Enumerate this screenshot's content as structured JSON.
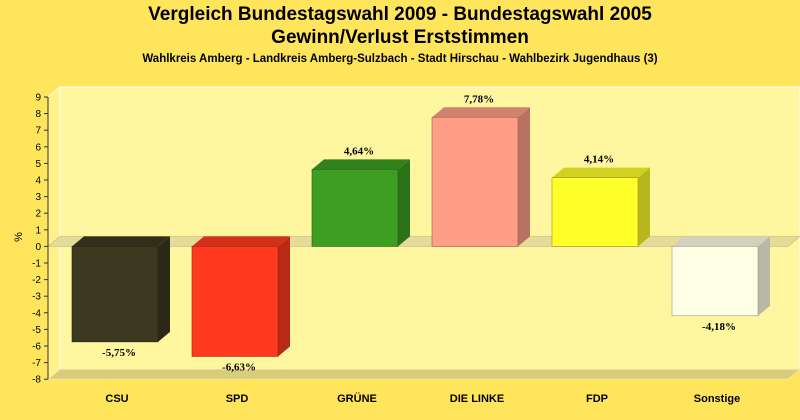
{
  "chart_data": {
    "type": "bar",
    "title": "Vergleich Bundestagswahl 2009 - Bundestagswahl 2005",
    "subtitle": "Gewinn/Verlust Erststimmen",
    "subtitle2": "Wahlkreis Amberg - Landkreis Amberg-Sulzbach - Stadt Hirschau - Wahlbezirk Jugendhaus (3)",
    "ylabel": "%",
    "xlabel": "",
    "ylim": [
      -8,
      9
    ],
    "yticks": [
      9,
      8,
      7,
      6,
      5,
      4,
      3,
      2,
      1,
      0,
      -1,
      -2,
      -3,
      -4,
      -5,
      -6,
      -7,
      -8
    ],
    "categories": [
      "CSU",
      "SPD",
      "GRÜNE",
      "DIE LINKE",
      "FDP",
      "Sonstige"
    ],
    "values": [
      -5.75,
      -6.63,
      4.64,
      7.78,
      4.14,
      -4.18
    ],
    "value_labels": [
      "-5,75%",
      "-6,63%",
      "4,64%",
      "7,78%",
      "4,14%",
      "-4,18%"
    ],
    "colors": [
      "#3d3820",
      "#ff3a1f",
      "#3d9e22",
      "#ff9e86",
      "#ffff2a",
      "#ffffe6"
    ],
    "grid": false,
    "legend": "none",
    "style": "3d"
  }
}
